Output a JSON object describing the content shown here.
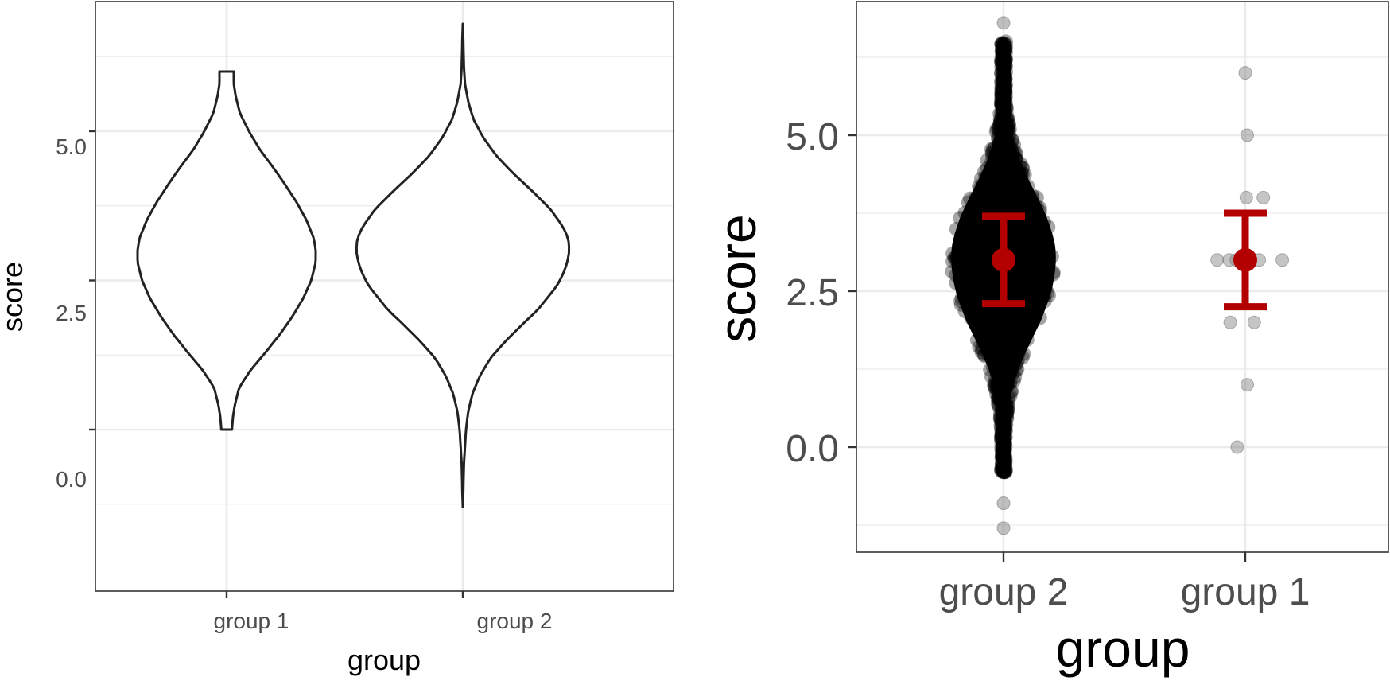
{
  "chart_data": [
    {
      "type": "violin",
      "title": "",
      "xlabel": "group",
      "ylabel": "score",
      "categories": [
        "group 1",
        "group 2"
      ],
      "ylim": [
        -1.3,
        7.0
      ],
      "yticks": [
        "0.0",
        "2.5",
        "5.0"
      ],
      "grid": true,
      "violins": [
        {
          "name": "group 1",
          "min": 0.0,
          "max": 6.0,
          "density_profile": [
            [
              0.0,
              0.06
            ],
            [
              0.2,
              0.07
            ],
            [
              0.4,
              0.09
            ],
            [
              0.7,
              0.14
            ],
            [
              1.0,
              0.27
            ],
            [
              1.3,
              0.44
            ],
            [
              1.6,
              0.6
            ],
            [
              1.9,
              0.74
            ],
            [
              2.2,
              0.86
            ],
            [
              2.5,
              0.95
            ],
            [
              2.8,
              1.0
            ],
            [
              3.0,
              1.0
            ],
            [
              3.2,
              0.98
            ],
            [
              3.5,
              0.9
            ],
            [
              3.8,
              0.79
            ],
            [
              4.1,
              0.66
            ],
            [
              4.4,
              0.52
            ],
            [
              4.7,
              0.37
            ],
            [
              5.0,
              0.25
            ],
            [
              5.3,
              0.15
            ],
            [
              5.6,
              0.1
            ],
            [
              5.8,
              0.08
            ],
            [
              6.0,
              0.08
            ]
          ]
        },
        {
          "name": "group 2",
          "min": -1.3,
          "max": 6.8,
          "density_profile": [
            [
              -1.3,
              0.0
            ],
            [
              -1.0,
              0.005
            ],
            [
              -0.6,
              0.01
            ],
            [
              -0.3,
              0.02
            ],
            [
              0.0,
              0.03
            ],
            [
              0.3,
              0.05
            ],
            [
              0.6,
              0.09
            ],
            [
              0.9,
              0.16
            ],
            [
              1.2,
              0.26
            ],
            [
              1.5,
              0.41
            ],
            [
              1.8,
              0.58
            ],
            [
              2.0,
              0.7
            ],
            [
              2.2,
              0.79
            ],
            [
              2.4,
              0.88
            ],
            [
              2.6,
              0.94
            ],
            [
              2.8,
              0.98
            ],
            [
              3.0,
              1.0
            ],
            [
              3.2,
              0.99
            ],
            [
              3.4,
              0.94
            ],
            [
              3.7,
              0.82
            ],
            [
              4.0,
              0.65
            ],
            [
              4.3,
              0.47
            ],
            [
              4.6,
              0.31
            ],
            [
              4.9,
              0.19
            ],
            [
              5.2,
              0.1
            ],
            [
              5.5,
              0.05
            ],
            [
              5.8,
              0.02
            ],
            [
              6.1,
              0.01
            ],
            [
              6.5,
              0.005
            ],
            [
              6.8,
              0.0
            ]
          ]
        }
      ]
    },
    {
      "type": "scatter",
      "title": "",
      "xlabel": "group",
      "ylabel": "score",
      "categories": [
        "group 2",
        "group 1"
      ],
      "ylim": [
        -1.3,
        6.8
      ],
      "yticks": [
        "0.0",
        "2.5",
        "5.0"
      ],
      "grid": true,
      "point_color": "#7f7f7f",
      "summary_color": "#b30000",
      "groups": [
        {
          "name": "group 2",
          "mean": 3.0,
          "ci_low": 2.3,
          "ci_high": 3.7,
          "cloud_min": -0.4,
          "cloud_max": 6.5,
          "outliers": [
            6.8,
            -0.9,
            -1.3
          ]
        },
        {
          "name": "group 1",
          "mean": 3.0,
          "ci_low": 2.25,
          "ci_high": 3.75,
          "points": [
            {
              "score": 6,
              "jitter": 0.0
            },
            {
              "score": 5,
              "jitter": 0.02
            },
            {
              "score": 4,
              "jitter": 0.01
            },
            {
              "score": 4,
              "jitter": 0.18
            },
            {
              "score": 3,
              "jitter": -0.28
            },
            {
              "score": 3,
              "jitter": -0.16
            },
            {
              "score": 3,
              "jitter": -0.09
            },
            {
              "score": 3,
              "jitter": 0.14
            },
            {
              "score": 3,
              "jitter": 0.37
            },
            {
              "score": 2,
              "jitter": -0.15
            },
            {
              "score": 2,
              "jitter": 0.09
            },
            {
              "score": 1,
              "jitter": 0.02
            },
            {
              "score": 0,
              "jitter": -0.08
            }
          ]
        }
      ]
    }
  ]
}
